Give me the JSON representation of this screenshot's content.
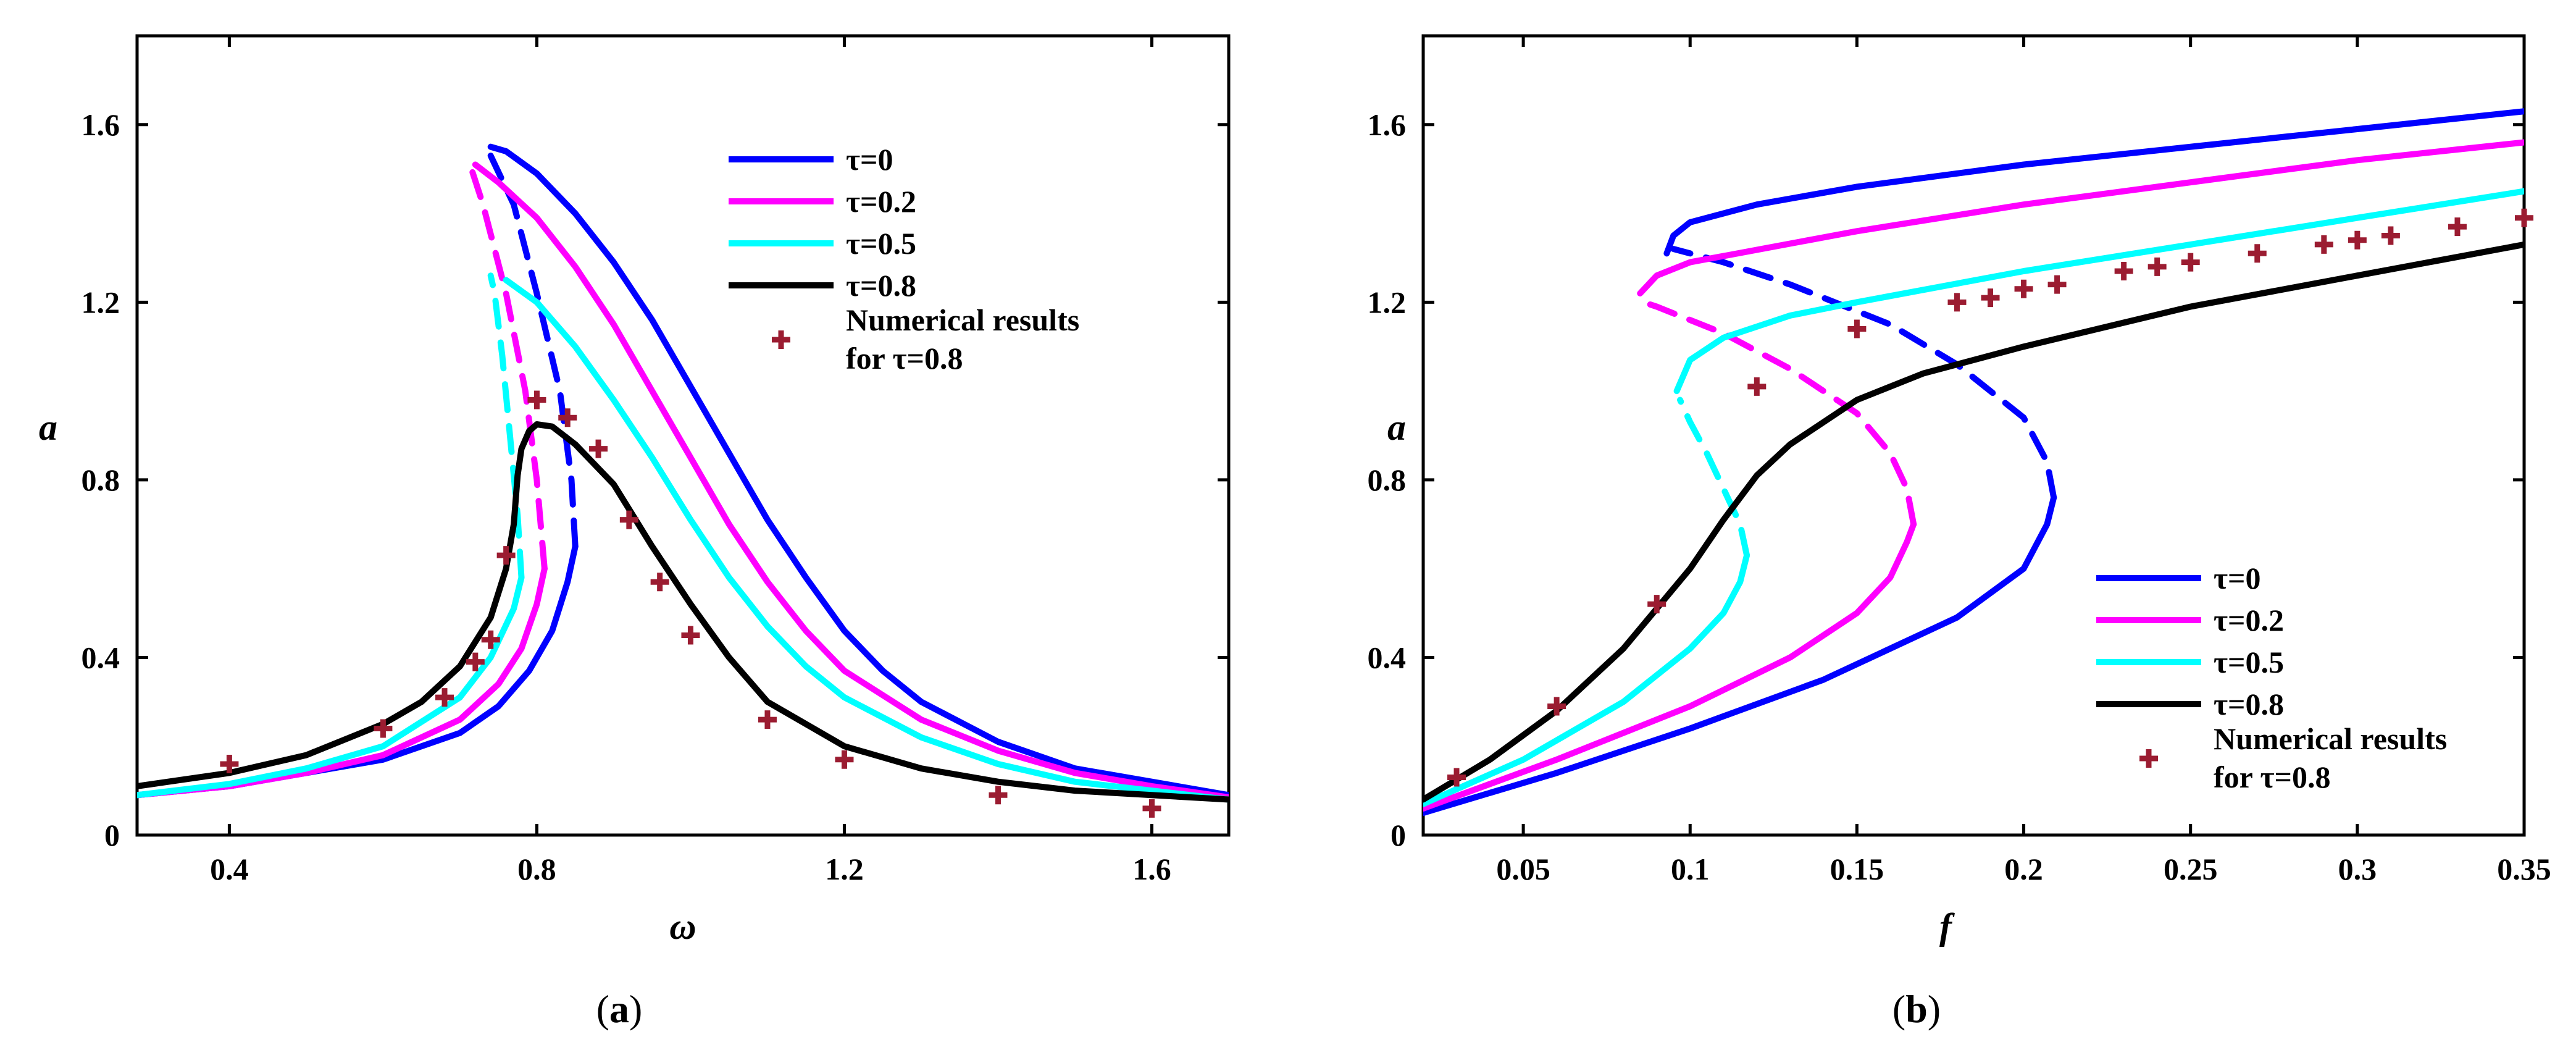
{
  "chart_data": [
    {
      "id": "a",
      "type": "line",
      "caption_label": "a",
      "xlabel": "ω",
      "ylabel": "a",
      "xlim": [
        0.28,
        1.7
      ],
      "ylim": [
        0,
        1.8
      ],
      "xticks": [
        0.4,
        0.8,
        1.2,
        1.6
      ],
      "xtick_labels": [
        "0.4",
        "0.8",
        "1.2",
        "1.6"
      ],
      "yticks": [
        0,
        0.4,
        0.8,
        1.2,
        1.6
      ],
      "ytick_labels": [
        "0",
        "0.4",
        "0.8",
        "1.2",
        "1.6"
      ],
      "legend": {
        "position": "top-right",
        "entries": [
          {
            "label": "τ=0",
            "color": "#0000ff"
          },
          {
            "label": "τ=0.2",
            "color": "#ff00ff"
          },
          {
            "label": "τ=0.5",
            "color": "#00ffff"
          },
          {
            "label": "τ=0.8",
            "color": "#000000"
          }
        ],
        "marker_label_lines": [
          "Numerical results",
          "for τ=0.8"
        ],
        "marker_color": "#9b1c31"
      },
      "series": [
        {
          "name": "τ=0",
          "color": "#0000ff",
          "stable_low": [
            [
              0.28,
              0.09
            ],
            [
              0.4,
              0.11
            ],
            [
              0.5,
              0.14
            ],
            [
              0.6,
              0.17
            ],
            [
              0.7,
              0.23
            ],
            [
              0.75,
              0.29
            ],
            [
              0.79,
              0.37
            ],
            [
              0.82,
              0.46
            ],
            [
              0.84,
              0.57
            ],
            [
              0.85,
              0.65
            ]
          ],
          "unstable": [
            [
              0.85,
              0.65
            ],
            [
              0.845,
              0.8
            ],
            [
              0.83,
              1.0
            ],
            [
              0.8,
              1.22
            ],
            [
              0.77,
              1.42
            ],
            [
              0.74,
              1.53
            ]
          ],
          "stable_high": [
            [
              0.74,
              1.55
            ],
            [
              0.76,
              1.54
            ],
            [
              0.8,
              1.49
            ],
            [
              0.85,
              1.4
            ],
            [
              0.9,
              1.29
            ],
            [
              0.95,
              1.16
            ],
            [
              1.0,
              1.01
            ],
            [
              1.05,
              0.86
            ],
            [
              1.1,
              0.71
            ],
            [
              1.15,
              0.58
            ],
            [
              1.2,
              0.46
            ],
            [
              1.25,
              0.37
            ],
            [
              1.3,
              0.3
            ],
            [
              1.4,
              0.21
            ],
            [
              1.5,
              0.15
            ],
            [
              1.6,
              0.12
            ],
            [
              1.7,
              0.09
            ]
          ]
        },
        {
          "name": "τ=0.2",
          "color": "#ff00ff",
          "stable_low": [
            [
              0.28,
              0.09
            ],
            [
              0.4,
              0.11
            ],
            [
              0.5,
              0.14
            ],
            [
              0.6,
              0.18
            ],
            [
              0.7,
              0.26
            ],
            [
              0.75,
              0.34
            ],
            [
              0.78,
              0.42
            ],
            [
              0.8,
              0.52
            ],
            [
              0.81,
              0.6
            ]
          ],
          "unstable": [
            [
              0.81,
              0.6
            ],
            [
              0.8,
              0.8
            ],
            [
              0.785,
              1.0
            ],
            [
              0.76,
              1.22
            ],
            [
              0.73,
              1.42
            ],
            [
              0.715,
              1.5
            ]
          ],
          "stable_high": [
            [
              0.72,
              1.51
            ],
            [
              0.75,
              1.47
            ],
            [
              0.8,
              1.39
            ],
            [
              0.85,
              1.28
            ],
            [
              0.9,
              1.15
            ],
            [
              0.95,
              1.0
            ],
            [
              1.0,
              0.85
            ],
            [
              1.05,
              0.7
            ],
            [
              1.1,
              0.57
            ],
            [
              1.15,
              0.46
            ],
            [
              1.2,
              0.37
            ],
            [
              1.3,
              0.26
            ],
            [
              1.4,
              0.19
            ],
            [
              1.5,
              0.14
            ],
            [
              1.6,
              0.11
            ],
            [
              1.7,
              0.085
            ]
          ]
        },
        {
          "name": "τ=0.5",
          "color": "#00ffff",
          "stable_low": [
            [
              0.28,
              0.09
            ],
            [
              0.4,
              0.115
            ],
            [
              0.5,
              0.15
            ],
            [
              0.6,
              0.2
            ],
            [
              0.7,
              0.31
            ],
            [
              0.74,
              0.4
            ],
            [
              0.77,
              0.51
            ],
            [
              0.78,
              0.58
            ]
          ],
          "unstable": [
            [
              0.78,
              0.58
            ],
            [
              0.775,
              0.72
            ],
            [
              0.765,
              0.9
            ],
            [
              0.755,
              1.08
            ],
            [
              0.745,
              1.22
            ],
            [
              0.74,
              1.26
            ]
          ],
          "stable_high": [
            [
              0.76,
              1.25
            ],
            [
              0.8,
              1.2
            ],
            [
              0.85,
              1.1
            ],
            [
              0.9,
              0.98
            ],
            [
              0.95,
              0.85
            ],
            [
              1.0,
              0.71
            ],
            [
              1.05,
              0.58
            ],
            [
              1.1,
              0.47
            ],
            [
              1.15,
              0.38
            ],
            [
              1.2,
              0.31
            ],
            [
              1.3,
              0.22
            ],
            [
              1.4,
              0.16
            ],
            [
              1.5,
              0.12
            ],
            [
              1.6,
              0.1
            ],
            [
              1.7,
              0.08
            ]
          ]
        },
        {
          "name": "τ=0.8",
          "color": "#000000",
          "stable_low": [
            [
              0.28,
              0.11
            ],
            [
              0.4,
              0.14
            ],
            [
              0.5,
              0.18
            ],
            [
              0.6,
              0.25
            ],
            [
              0.65,
              0.3
            ],
            [
              0.7,
              0.38
            ],
            [
              0.74,
              0.49
            ],
            [
              0.76,
              0.6
            ],
            [
              0.77,
              0.7
            ],
            [
              0.775,
              0.81
            ],
            [
              0.78,
              0.87
            ],
            [
              0.79,
              0.91
            ],
            [
              0.8,
              0.925
            ],
            [
              0.82,
              0.92
            ],
            [
              0.85,
              0.88
            ],
            [
              0.9,
              0.79
            ],
            [
              0.95,
              0.65
            ],
            [
              1.0,
              0.52
            ],
            [
              1.05,
              0.4
            ],
            [
              1.1,
              0.3
            ],
            [
              1.2,
              0.2
            ],
            [
              1.3,
              0.15
            ],
            [
              1.4,
              0.12
            ],
            [
              1.5,
              0.1
            ],
            [
              1.6,
              0.09
            ],
            [
              1.7,
              0.08
            ]
          ],
          "unstable": [],
          "stable_high": []
        }
      ],
      "numerical_points": [
        [
          0.4,
          0.16
        ],
        [
          0.6,
          0.24
        ],
        [
          0.68,
          0.31
        ],
        [
          0.72,
          0.39
        ],
        [
          0.74,
          0.44
        ],
        [
          0.76,
          0.63
        ],
        [
          0.8,
          0.98
        ],
        [
          0.84,
          0.94
        ],
        [
          0.88,
          0.87
        ],
        [
          0.92,
          0.71
        ],
        [
          0.96,
          0.57
        ],
        [
          1.0,
          0.45
        ],
        [
          1.1,
          0.26
        ],
        [
          1.2,
          0.17
        ],
        [
          1.4,
          0.09
        ],
        [
          1.6,
          0.06
        ]
      ]
    },
    {
      "id": "b",
      "type": "line",
      "caption_label": "b",
      "xlabel": "f",
      "ylabel": "a",
      "xlim": [
        0.02,
        0.35
      ],
      "ylim": [
        0,
        1.8
      ],
      "xticks": [
        0.05,
        0.1,
        0.15,
        0.2,
        0.25,
        0.3,
        0.35
      ],
      "xtick_labels": [
        "0.05",
        "0.1",
        "0.15",
        "0.2",
        "0.25",
        "0.3",
        "0.35"
      ],
      "yticks": [
        0,
        0.4,
        0.8,
        1.2,
        1.6
      ],
      "ytick_labels": [
        "0",
        "0.4",
        "0.8",
        "1.2",
        "1.6"
      ],
      "legend": {
        "position": "bottom-right",
        "entries": [
          {
            "label": "τ=0",
            "color": "#0000ff"
          },
          {
            "label": "τ=0.2",
            "color": "#ff00ff"
          },
          {
            "label": "τ=0.5",
            "color": "#00ffff"
          },
          {
            "label": "τ=0.8",
            "color": "#000000"
          }
        ],
        "marker_label_lines": [
          "Numerical results",
          "for τ=0.8"
        ],
        "marker_color": "#9b1c31"
      },
      "series": [
        {
          "name": "τ=0",
          "color": "#0000ff",
          "stable_low": [
            [
              0.02,
              0.05
            ],
            [
              0.06,
              0.14
            ],
            [
              0.1,
              0.24
            ],
            [
              0.14,
              0.35
            ],
            [
              0.18,
              0.49
            ],
            [
              0.2,
              0.6
            ],
            [
              0.207,
              0.7
            ],
            [
              0.209,
              0.76
            ]
          ],
          "unstable": [
            [
              0.209,
              0.76
            ],
            [
              0.207,
              0.84
            ],
            [
              0.2,
              0.94
            ],
            [
              0.18,
              1.06
            ],
            [
              0.16,
              1.15
            ],
            [
              0.13,
              1.24
            ],
            [
              0.11,
              1.29
            ],
            [
              0.095,
              1.32
            ]
          ],
          "stable_high": [
            [
              0.093,
              1.31
            ],
            [
              0.095,
              1.35
            ],
            [
              0.1,
              1.38
            ],
            [
              0.12,
              1.42
            ],
            [
              0.15,
              1.46
            ],
            [
              0.2,
              1.51
            ],
            [
              0.25,
              1.55
            ],
            [
              0.3,
              1.59
            ],
            [
              0.35,
              1.63
            ]
          ]
        },
        {
          "name": "τ=0.2",
          "color": "#ff00ff",
          "stable_low": [
            [
              0.02,
              0.06
            ],
            [
              0.06,
              0.17
            ],
            [
              0.1,
              0.29
            ],
            [
              0.13,
              0.4
            ],
            [
              0.15,
              0.5
            ],
            [
              0.16,
              0.58
            ],
            [
              0.165,
              0.66
            ],
            [
              0.167,
              0.7
            ]
          ],
          "unstable": [
            [
              0.167,
              0.7
            ],
            [
              0.165,
              0.78
            ],
            [
              0.16,
              0.86
            ],
            [
              0.15,
              0.95
            ],
            [
              0.13,
              1.05
            ],
            [
              0.11,
              1.13
            ],
            [
              0.09,
              1.19
            ],
            [
              0.086,
              1.2
            ]
          ],
          "stable_high": [
            [
              0.085,
              1.22
            ],
            [
              0.09,
              1.26
            ],
            [
              0.1,
              1.29
            ],
            [
              0.15,
              1.36
            ],
            [
              0.2,
              1.42
            ],
            [
              0.25,
              1.47
            ],
            [
              0.3,
              1.52
            ],
            [
              0.35,
              1.56
            ]
          ]
        },
        {
          "name": "τ=0.5",
          "color": "#00ffff",
          "stable_low": [
            [
              0.02,
              0.07
            ],
            [
              0.05,
              0.17
            ],
            [
              0.08,
              0.3
            ],
            [
              0.1,
              0.42
            ],
            [
              0.11,
              0.5
            ],
            [
              0.115,
              0.57
            ],
            [
              0.117,
              0.63
            ]
          ],
          "unstable": [
            [
              0.117,
              0.63
            ],
            [
              0.115,
              0.7
            ],
            [
              0.11,
              0.78
            ],
            [
              0.105,
              0.86
            ],
            [
              0.1,
              0.93
            ],
            [
              0.097,
              0.98
            ]
          ],
          "stable_high": [
            [
              0.096,
              1.0
            ],
            [
              0.1,
              1.07
            ],
            [
              0.11,
              1.12
            ],
            [
              0.13,
              1.17
            ],
            [
              0.15,
              1.2
            ],
            [
              0.2,
              1.27
            ],
            [
              0.25,
              1.33
            ],
            [
              0.3,
              1.39
            ],
            [
              0.35,
              1.45
            ]
          ]
        },
        {
          "name": "τ=0.8",
          "color": "#000000",
          "stable_low": [
            [
              0.02,
              0.08
            ],
            [
              0.04,
              0.17
            ],
            [
              0.06,
              0.28
            ],
            [
              0.08,
              0.42
            ],
            [
              0.1,
              0.6
            ],
            [
              0.11,
              0.71
            ],
            [
              0.12,
              0.81
            ],
            [
              0.13,
              0.88
            ],
            [
              0.15,
              0.98
            ],
            [
              0.17,
              1.04
            ],
            [
              0.2,
              1.1
            ],
            [
              0.25,
              1.19
            ],
            [
              0.3,
              1.26
            ],
            [
              0.35,
              1.33
            ]
          ],
          "unstable": [],
          "stable_high": []
        }
      ],
      "numerical_points": [
        [
          0.03,
          0.13
        ],
        [
          0.06,
          0.29
        ],
        [
          0.09,
          0.52
        ],
        [
          0.12,
          1.01
        ],
        [
          0.15,
          1.14
        ],
        [
          0.18,
          1.2
        ],
        [
          0.19,
          1.21
        ],
        [
          0.2,
          1.23
        ],
        [
          0.21,
          1.24
        ],
        [
          0.23,
          1.27
        ],
        [
          0.24,
          1.28
        ],
        [
          0.25,
          1.29
        ],
        [
          0.27,
          1.31
        ],
        [
          0.29,
          1.33
        ],
        [
          0.3,
          1.34
        ],
        [
          0.31,
          1.35
        ],
        [
          0.33,
          1.37
        ],
        [
          0.35,
          1.39
        ]
      ]
    }
  ]
}
